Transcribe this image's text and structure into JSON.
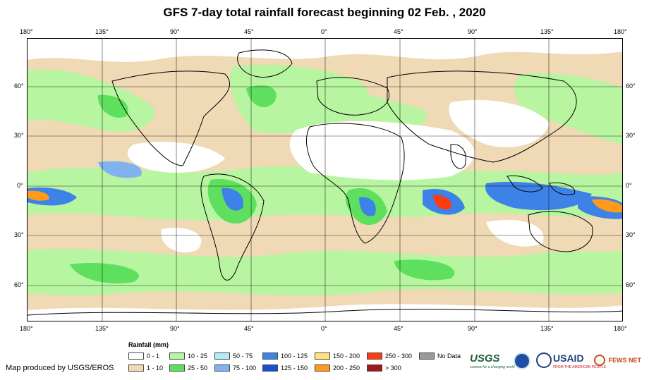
{
  "title": "GFS 7-day total rainfall forecast beginning 02 Feb. , 2020",
  "axes": {
    "lon_ticks": [
      "180°",
      "135°",
      "90°",
      "45°",
      "0°",
      "45°",
      "90°",
      "135°",
      "180°"
    ],
    "lat_ticks": [
      "60°",
      "30°",
      "0°",
      "30°",
      "60°"
    ]
  },
  "legend": {
    "title": "Rainfall (mm)",
    "items": [
      {
        "label": "0 - 1",
        "color": "#ffffff"
      },
      {
        "label": "1 - 10",
        "color": "#f0d9b5"
      },
      {
        "label": "10 - 25",
        "color": "#b7f5a0"
      },
      {
        "label": "25 - 50",
        "color": "#5ee05e"
      },
      {
        "label": "50 - 75",
        "color": "#b3ecf7"
      },
      {
        "label": "75 - 100",
        "color": "#7fb2ee"
      },
      {
        "label": "100 - 125",
        "color": "#3d82e6"
      },
      {
        "label": "125 - 150",
        "color": "#1a4fd6"
      },
      {
        "label": "150 - 200",
        "color": "#ffe27a"
      },
      {
        "label": "200 - 250",
        "color": "#ff9a1a"
      },
      {
        "label": "250 - 300",
        "color": "#ff3a10"
      },
      {
        "label": "> 300",
        "color": "#a01818"
      },
      {
        "label": "No Data",
        "color": "#9a9a9a"
      }
    ]
  },
  "credit": "Map produced by USGS/EROS",
  "logos": {
    "usgs": "USGS",
    "usgs_tagline": "science for a changing world",
    "usaid": "USAID",
    "usaid_tagline": "FROM THE AMERICAN PEOPLE",
    "fewsnet": "FEWS NET"
  }
}
